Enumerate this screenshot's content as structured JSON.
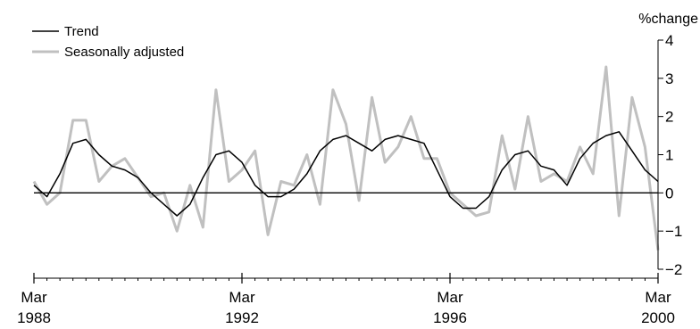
{
  "chart_data": {
    "type": "line",
    "title": "",
    "xlabel": "",
    "ylabel": "%change",
    "ylim": [
      -2,
      4
    ],
    "yticks": [
      {
        "value": 4,
        "label": "4"
      },
      {
        "value": 3,
        "label": "3"
      },
      {
        "value": 2,
        "label": "2"
      },
      {
        "value": 1,
        "label": "1"
      },
      {
        "value": 0,
        "label": "0"
      },
      {
        "value": -1,
        "label": "−1"
      },
      {
        "value": -2,
        "label": "−2"
      }
    ],
    "xticks": [
      {
        "month": "Mar",
        "year": "1988",
        "index": 0
      },
      {
        "month": "Mar",
        "year": "1992",
        "index": 16
      },
      {
        "month": "Mar",
        "year": "1996",
        "index": 32
      },
      {
        "month": "Mar",
        "year": "2000",
        "index": 48
      }
    ],
    "legend_position": "top-left",
    "grid": false,
    "x_start": "Mar 1988",
    "x_end": "Mar 2000",
    "x_frequency": "quarterly",
    "series": [
      {
        "name": "Trend",
        "color": "#000000",
        "values": [
          0.2,
          -0.1,
          0.5,
          1.3,
          1.4,
          1.0,
          0.7,
          0.6,
          0.4,
          0.0,
          -0.3,
          -0.6,
          -0.3,
          0.4,
          1.0,
          1.1,
          0.8,
          0.2,
          -0.1,
          -0.1,
          0.1,
          0.5,
          1.1,
          1.4,
          1.5,
          1.3,
          1.1,
          1.4,
          1.5,
          1.4,
          1.3,
          0.6,
          -0.1,
          -0.4,
          -0.4,
          -0.1,
          0.6,
          1.0,
          1.1,
          0.7,
          0.6,
          0.2,
          0.9,
          1.3,
          1.5,
          1.6,
          1.1,
          0.6,
          0.3
        ]
      },
      {
        "name": "Seasonally adjusted",
        "color": "#c0c0c0",
        "values": [
          0.3,
          -0.3,
          0.0,
          1.9,
          1.9,
          0.3,
          0.7,
          0.9,
          0.4,
          -0.1,
          0.0,
          -1.0,
          0.2,
          -0.9,
          2.7,
          0.3,
          0.6,
          1.1,
          -1.1,
          0.3,
          0.2,
          1.0,
          -0.3,
          2.7,
          1.8,
          -0.2,
          2.5,
          0.8,
          1.2,
          2.0,
          0.9,
          0.9,
          0.0,
          -0.3,
          -0.6,
          -0.5,
          1.5,
          0.1,
          2.0,
          0.3,
          0.5,
          0.3,
          1.2,
          0.5,
          3.3,
          -0.6,
          2.5,
          1.2,
          -1.5
        ]
      }
    ]
  }
}
